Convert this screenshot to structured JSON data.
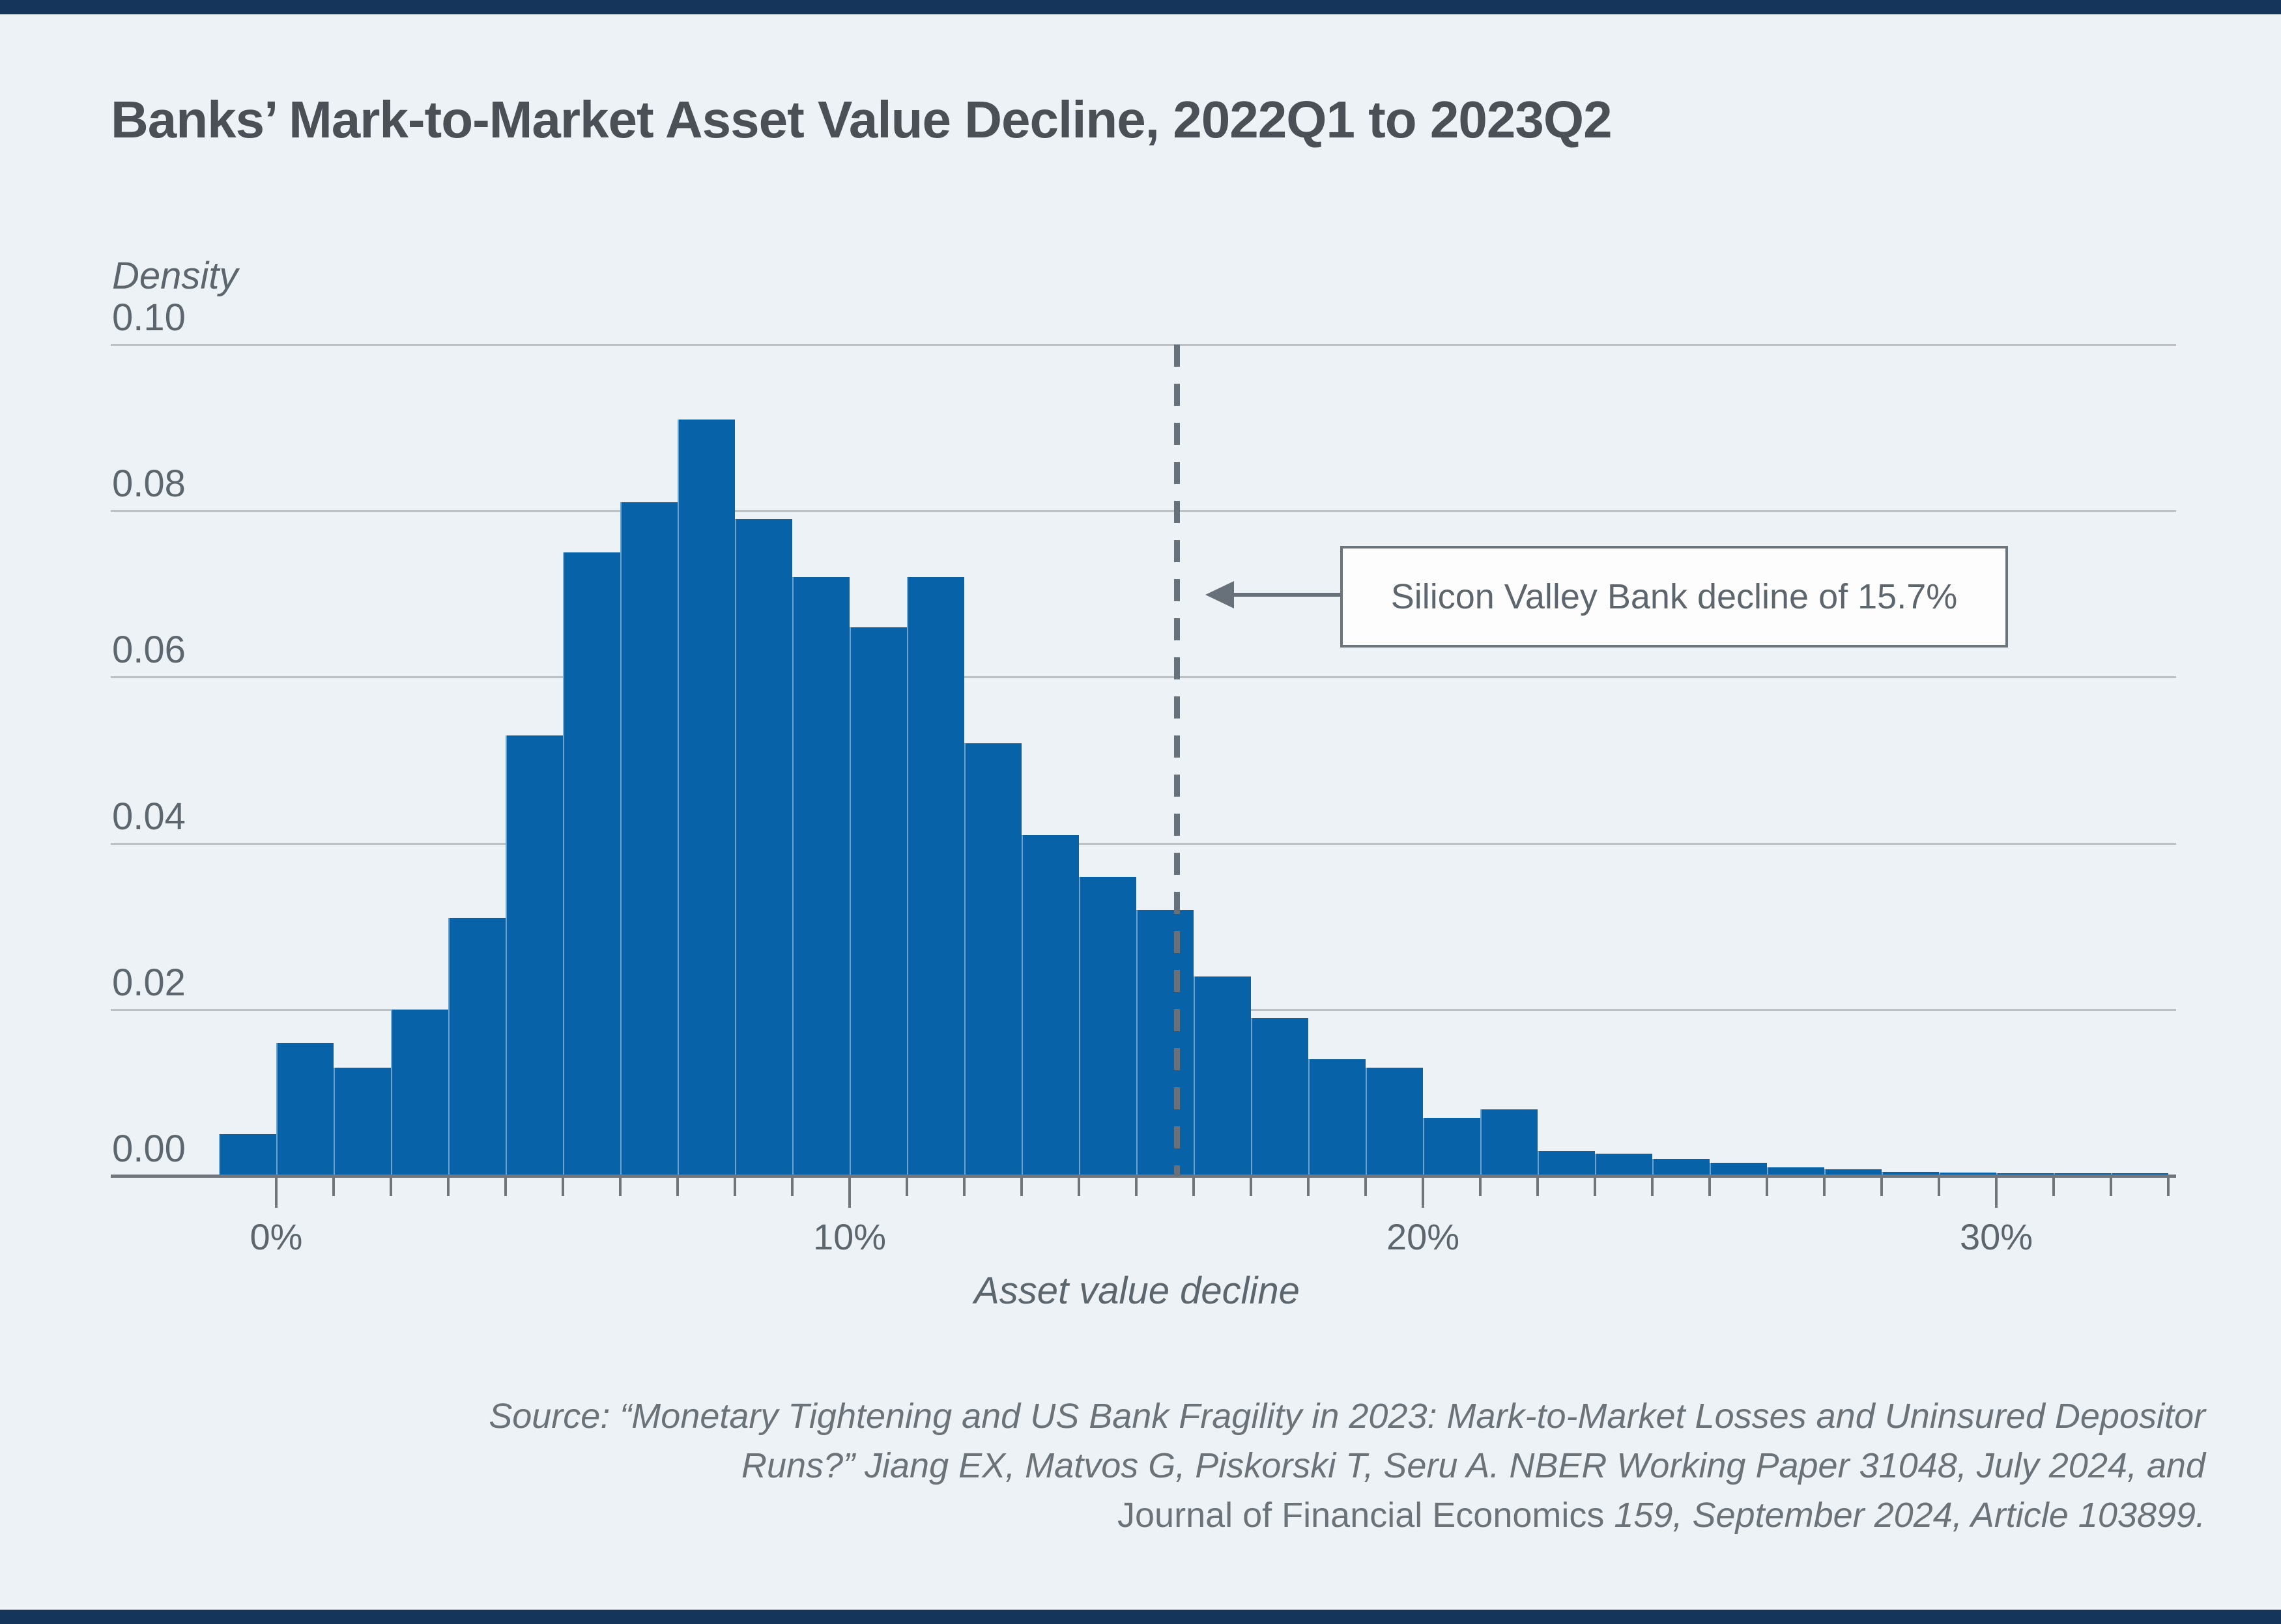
{
  "title": "Banks’ Mark-to-Market Asset Value Decline, 2022Q1 to 2023Q2",
  "y_axis": {
    "title": "Density",
    "ticks": [
      {
        "label": "0.10",
        "value": 0.1
      },
      {
        "label": "0.08",
        "value": 0.08
      },
      {
        "label": "0.06",
        "value": 0.06
      },
      {
        "label": "0.04",
        "value": 0.04
      },
      {
        "label": "0.02",
        "value": 0.02
      },
      {
        "label": "0.00",
        "value": 0.0
      }
    ]
  },
  "x_axis": {
    "title": "Asset value decline",
    "major_ticks": [
      {
        "label": "0%",
        "value": 0
      },
      {
        "label": "10%",
        "value": 10
      },
      {
        "label": "20%",
        "value": 20
      },
      {
        "label": "30%",
        "value": 30
      }
    ],
    "minor_tick_step_pct": 1,
    "minor_tick_range_pct": [
      0,
      33
    ]
  },
  "annotation": {
    "text": "Silicon Valley Bank decline of 15.7%",
    "value_pct": 15.7
  },
  "chart_data": {
    "type": "bar",
    "subtype": "histogram",
    "title": "Banks’ Mark-to-Market Asset Value Decline, 2022Q1 to 2023Q2",
    "xlabel": "Asset value decline",
    "ylabel": "Density",
    "xlim_pct": [
      -2.9,
      33.3
    ],
    "ylim": [
      0,
      0.1
    ],
    "grid": true,
    "legend": "none",
    "bin_start_pct": -1,
    "bin_width_pct": 1,
    "values": [
      0.005,
      0.016,
      0.013,
      0.02,
      0.031,
      0.053,
      0.075,
      0.081,
      0.091,
      0.079,
      0.072,
      0.066,
      0.072,
      0.052,
      0.041,
      0.036,
      0.032,
      0.024,
      0.019,
      0.014,
      0.013,
      0.007,
      0.008,
      0.003,
      0.0027,
      0.002,
      0.0016,
      0.001,
      0.0008,
      0.0005,
      0.0004,
      0.0003,
      0.0003,
      0.0003
    ],
    "reference_line_pct": 15.7,
    "reference_line_label": "Silicon Valley Bank decline of 15.7%"
  },
  "source": {
    "line1": "Source: “Monetary Tightening and US Bank Fragility in 2023: Mark-to-Market Losses and Uninsured Depositor",
    "line2": "Runs?” Jiang EX, Matvos G, Piskorski T, Seru A. NBER Working Paper 31048, July 2024, and",
    "line3_roman": "Journal of Financial Economics",
    "line3_italic": " 159, September 2024, Article 103899."
  },
  "colors": {
    "background": "#edf2f7",
    "accent_bar": "#16355a",
    "bar": "#0762a8",
    "grid": "#bcc0c4",
    "axis": "#70767c",
    "title_text": "#4a5055",
    "body_text": "#5d666d",
    "dashed_line": "#68717a",
    "annotation_border": "#6d757c",
    "source_text": "#6b7378"
  }
}
